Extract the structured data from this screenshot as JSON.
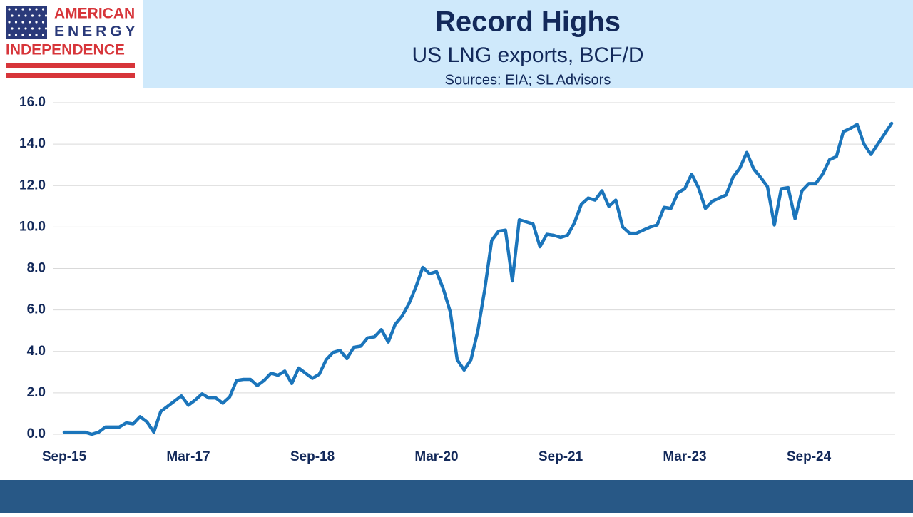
{
  "logo": [
    "AMERICAN",
    "ENERGY",
    "INDEPENDENCE"
  ],
  "chart_data": {
    "type": "line",
    "title": "Record Highs",
    "subtitle": "US LNG exports, BCF/D",
    "source": "Sources: EIA; SL Advisors",
    "color": "#1b75bb",
    "grid": true,
    "ylim": [
      0,
      16
    ],
    "yticks": [
      {
        "value": 0,
        "label": "0.0"
      },
      {
        "value": 2,
        "label": "2.0"
      },
      {
        "value": 4,
        "label": "4.0"
      },
      {
        "value": 6,
        "label": "6.0"
      },
      {
        "value": 8,
        "label": "8.0"
      },
      {
        "value": 10,
        "label": "10.0"
      },
      {
        "value": 12,
        "label": "12.0"
      },
      {
        "value": 14,
        "label": "14.0"
      },
      {
        "value": 16,
        "label": "16.0"
      }
    ],
    "categories": [
      "Sep-15",
      null,
      null,
      null,
      null,
      null,
      null,
      null,
      null,
      null,
      null,
      null,
      null,
      null,
      null,
      null,
      null,
      null,
      "Mar-17",
      null,
      null,
      null,
      null,
      null,
      null,
      null,
      null,
      null,
      null,
      null,
      null,
      null,
      null,
      null,
      null,
      null,
      "Sep-18",
      null,
      null,
      null,
      null,
      null,
      null,
      null,
      null,
      null,
      null,
      null,
      null,
      null,
      null,
      null,
      null,
      null,
      "Mar-20",
      null,
      null,
      null,
      null,
      null,
      null,
      null,
      null,
      null,
      null,
      null,
      null,
      null,
      null,
      null,
      null,
      null,
      "Sep-21",
      null,
      null,
      null,
      null,
      null,
      null,
      null,
      null,
      null,
      null,
      null,
      null,
      null,
      null,
      null,
      null,
      null,
      "Mar-23",
      null,
      null,
      null,
      null,
      null,
      null,
      null,
      null,
      null,
      null,
      null,
      null,
      null,
      null,
      null,
      null,
      null,
      "Sep-24",
      null,
      null,
      null,
      null,
      null,
      null,
      null,
      null,
      null,
      null,
      null,
      null
    ],
    "values": [
      0.1,
      0.1,
      0.1,
      0.1,
      0.0,
      0.1,
      0.35,
      0.35,
      0.35,
      0.55,
      0.5,
      0.85,
      0.6,
      0.1,
      1.1,
      1.35,
      1.6,
      1.85,
      1.4,
      1.65,
      1.95,
      1.75,
      1.75,
      1.5,
      1.8,
      2.6,
      2.65,
      2.65,
      2.35,
      2.6,
      2.95,
      2.85,
      3.05,
      2.45,
      3.2,
      2.95,
      2.7,
      2.9,
      3.6,
      3.95,
      4.05,
      3.65,
      4.2,
      4.25,
      4.65,
      4.7,
      5.05,
      4.45,
      5.3,
      5.7,
      6.3,
      7.1,
      8.05,
      7.75,
      7.85,
      7.0,
      5.9,
      3.6,
      3.1,
      3.6,
      5.0,
      7.0,
      9.35,
      9.8,
      9.85,
      7.4,
      10.35,
      10.25,
      10.15,
      9.05,
      9.65,
      9.6,
      9.5,
      9.6,
      10.2,
      11.1,
      11.4,
      11.3,
      11.75,
      11.0,
      11.3,
      10.0,
      9.7,
      9.7,
      9.85,
      10.0,
      10.1,
      10.95,
      10.9,
      11.65,
      11.85,
      12.55,
      11.9,
      10.9,
      11.25,
      11.4,
      11.55,
      12.4,
      12.85,
      13.6,
      12.8,
      12.4,
      11.95,
      10.1,
      11.85,
      11.9,
      10.4,
      11.75,
      12.1,
      12.1,
      12.55,
      13.25,
      13.4,
      14.6,
      14.75,
      14.95,
      14.0,
      13.5,
      14.0,
      14.5,
      15.0
    ]
  }
}
